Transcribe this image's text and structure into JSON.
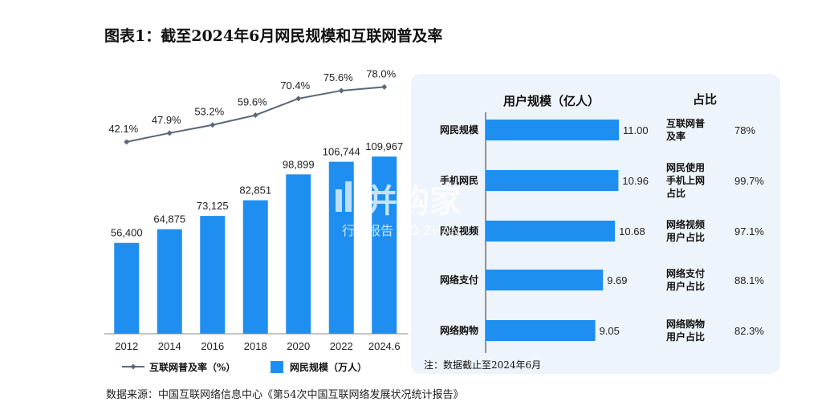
{
  "title": "图表1：截至2024年6月网民规模和互联网普及率",
  "source": "数据来源：中国互联网络信息中心《第54次中国互联网络发展状况统计报告》",
  "watermark": {
    "brand": "并购家",
    "sub": "行业报告 IPO·ZHAN"
  },
  "colors": {
    "bar": "#1e8ff0",
    "line": "#5b6878",
    "panel": "#eef4fb"
  },
  "chart_data": [
    {
      "type": "bar+line",
      "categories": [
        "2012",
        "2014",
        "2016",
        "2018",
        "2020",
        "2022",
        "2024.6"
      ],
      "series": [
        {
          "name": "网民规模（万人）",
          "type": "bar",
          "values": [
            56400,
            64875,
            73125,
            82851,
            98899,
            106744,
            109967
          ],
          "labels": [
            "56,400",
            "64,875",
            "73,125",
            "82,851",
            "98,899",
            "106,744",
            "109,967"
          ]
        },
        {
          "name": "互联网普及率（%）",
          "type": "line",
          "values": [
            42.1,
            47.9,
            53.2,
            59.6,
            70.4,
            75.6,
            78.0
          ],
          "labels": [
            "42.1%",
            "47.9%",
            "53.2%",
            "59.6%",
            "70.4%",
            "75.6%",
            "78.0%"
          ]
        }
      ],
      "bar_ylim": [
        0,
        115000
      ],
      "line_ylim": [
        30,
        85
      ],
      "legend_position": "bottom"
    },
    {
      "type": "bar",
      "orientation": "horizontal",
      "header": "用户规模（亿人）",
      "ratio_header": "占比",
      "categories": [
        "网民规模",
        "手机网民",
        "网络视频",
        "网络支付",
        "网络购物"
      ],
      "values": [
        11.0,
        10.96,
        10.68,
        9.69,
        9.05
      ],
      "value_labels": [
        "11.00",
        "10.96",
        "10.68",
        "9.69",
        "9.05"
      ],
      "ratio_desc": [
        [
          "互联网普",
          "及率"
        ],
        [
          "网民使用",
          "手机上网",
          "占比"
        ],
        [
          "网络视频",
          "用户占比"
        ],
        [
          "网络支付",
          "用户占比"
        ],
        [
          "网络购物",
          "用户占比"
        ]
      ],
      "ratios": [
        "78%",
        "99.7%",
        "97.1%",
        "88.1%",
        "82.3%"
      ],
      "xlim": [
        0,
        11.5
      ],
      "note": "注：数据截止至2024年6月"
    }
  ]
}
